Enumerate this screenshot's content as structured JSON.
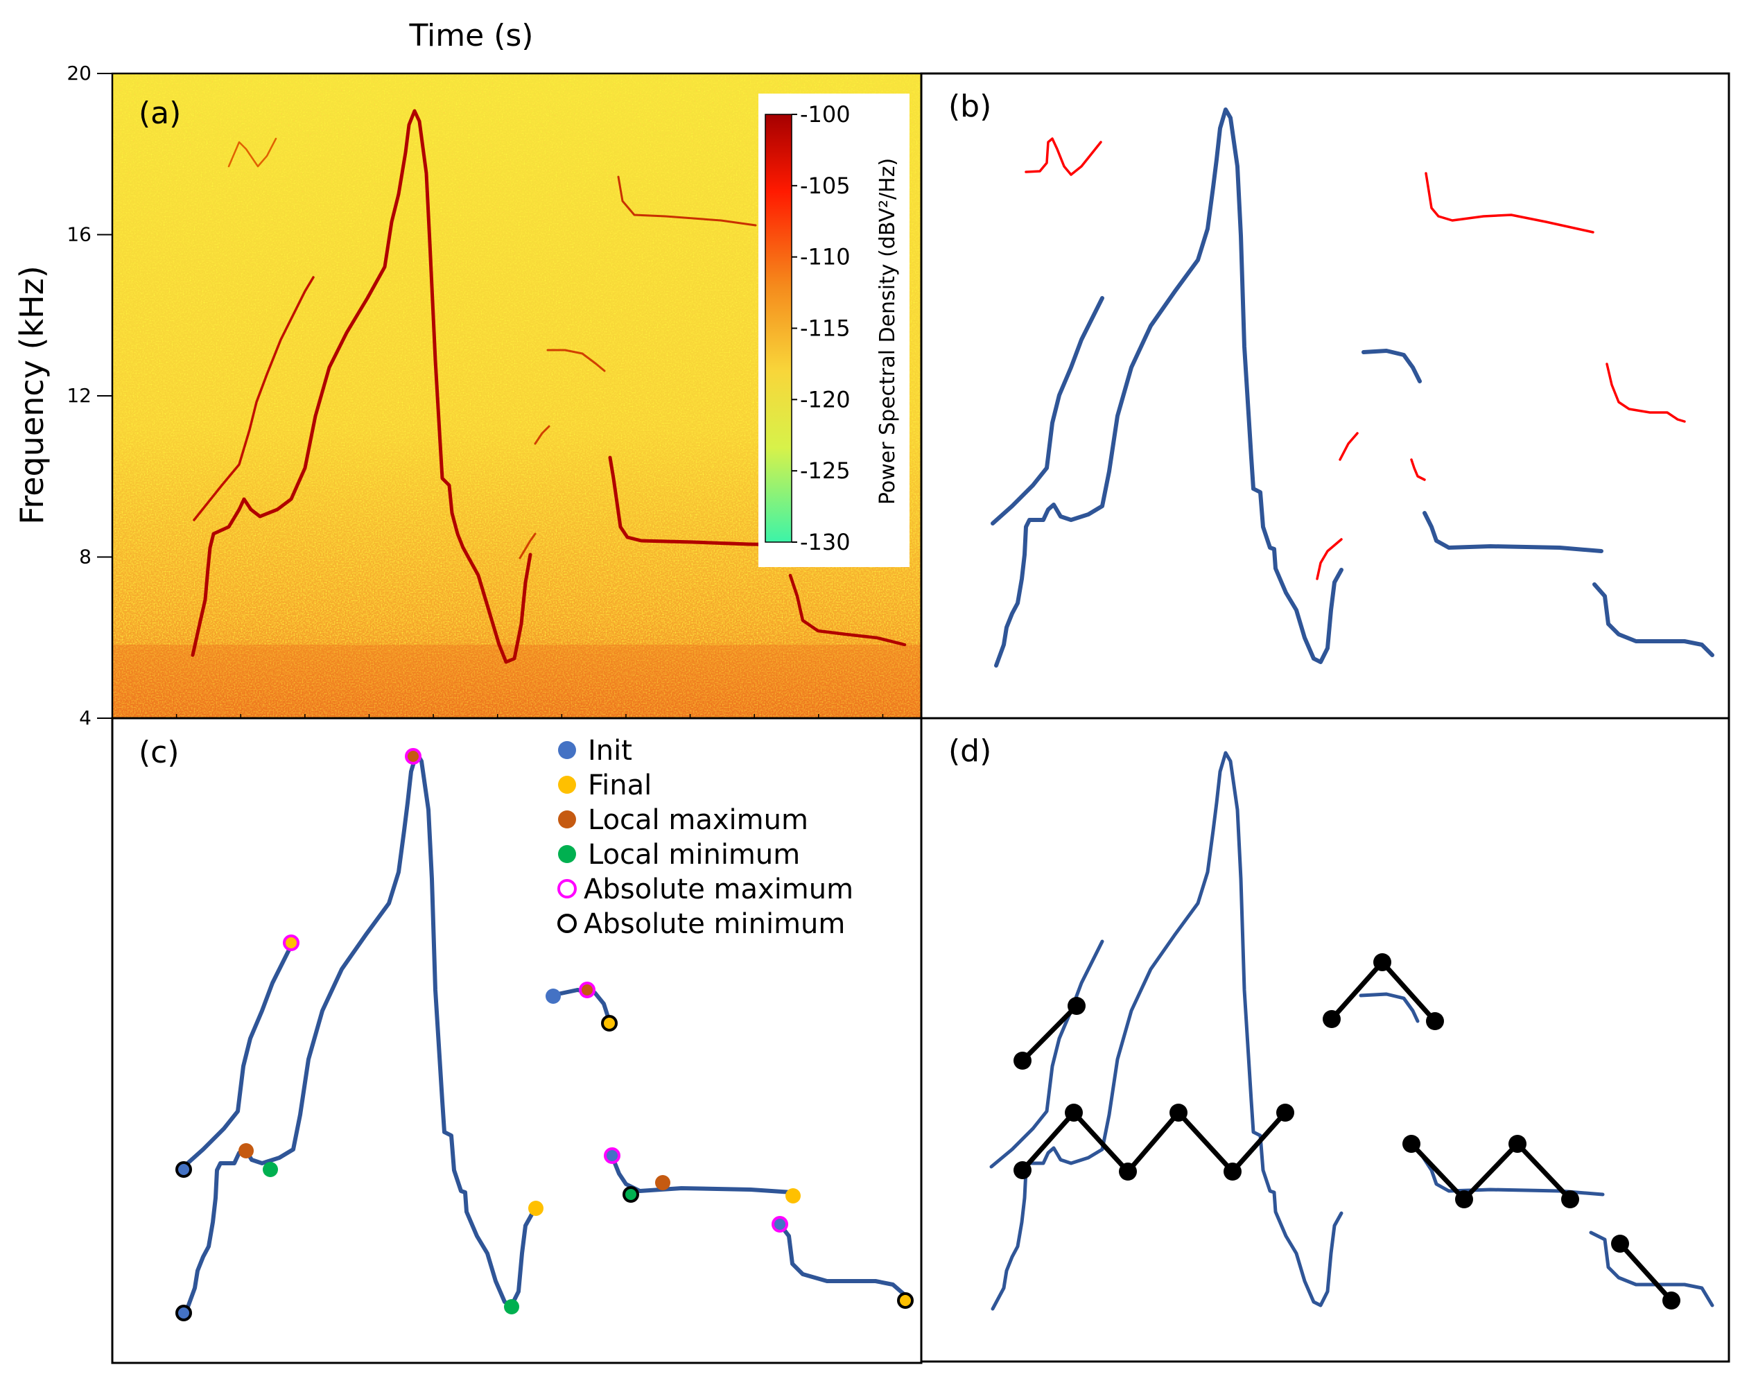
{
  "chart_data": [
    {
      "panel": "a",
      "type": "heatmap",
      "label": "(a)",
      "xlabel": "Time (s)",
      "ylabel": "Frequency (kHz)",
      "ylim": [
        4,
        20
      ],
      "yticks": [
        4,
        8,
        12,
        16,
        20
      ],
      "colorbar": {
        "label": "Power Spectral Density (dBV²/Hz)",
        "range": [
          -130,
          -100
        ],
        "ticks": [
          -100,
          -105,
          -110,
          -115,
          -120,
          -125,
          -130
        ]
      }
    },
    {
      "panel": "b",
      "type": "line",
      "label": "(b)",
      "description_series": [
        "whistle contours",
        "rejected fragments"
      ]
    },
    {
      "panel": "c",
      "type": "scatter",
      "label": "(c)",
      "legend": [
        {
          "name": "Init",
          "fill": "#4472C4",
          "stroke": ""
        },
        {
          "name": "Final",
          "fill": "#FFC000",
          "stroke": ""
        },
        {
          "name": "Local maximum",
          "fill": "#C55A11",
          "stroke": ""
        },
        {
          "name": "Local minimum",
          "fill": "#00B050",
          "stroke": ""
        },
        {
          "name": "Absolute maximum",
          "fill": "none",
          "stroke": "#FF00FF"
        },
        {
          "name": "Absolute minimum",
          "fill": "none",
          "stroke": "#000000"
        }
      ]
    },
    {
      "panel": "d",
      "type": "line",
      "label": "(d)"
    }
  ],
  "colors": {
    "contour": "#2F5597",
    "fragment": "#FF0000",
    "init": "#4472C4",
    "final": "#FFC000",
    "local_max": "#C55A11",
    "local_min": "#00B050",
    "abs_max": "#FF00FF",
    "abs_min": "#000000",
    "zigzag": "#000000"
  }
}
